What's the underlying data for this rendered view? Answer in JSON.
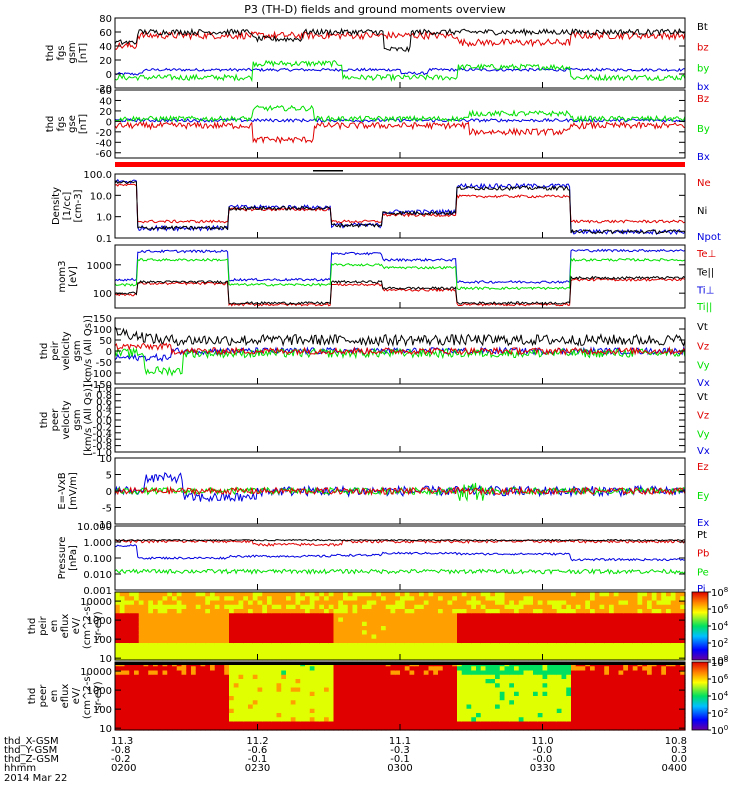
{
  "title": "P3 (TH-D) fields and ground moments overview",
  "colors": {
    "black": "#000000",
    "red": "#e00000",
    "green": "#00e000",
    "blue": "#0000e0",
    "redbar": "#ff0000"
  },
  "panels": [
    {
      "id": "fgs-gsm",
      "ylabel": [
        "thd",
        "fgs",
        "gsm",
        "[nT]"
      ],
      "ylim": [
        -20,
        80
      ],
      "ticks": [
        -20,
        0,
        20,
        40,
        60,
        80
      ],
      "legend": [
        {
          "label": "Bt",
          "color": "black"
        },
        {
          "label": "bz",
          "color": "red"
        },
        {
          "label": "by",
          "color": "green"
        },
        {
          "label": "bx",
          "color": "blue"
        }
      ]
    },
    {
      "id": "fgs-gse",
      "ylabel": [
        "thd",
        "fgs",
        "gse",
        "[nT]"
      ],
      "ylim": [
        -70,
        60
      ],
      "ticks": [
        -60,
        -40,
        -20,
        0,
        20,
        40,
        60
      ],
      "legend": [
        {
          "label": "Bz",
          "color": "red"
        },
        {
          "label": "By",
          "color": "green"
        },
        {
          "label": "Bx",
          "color": "blue"
        }
      ]
    },
    {
      "id": "density",
      "ylabel": [
        "Density",
        "[1/cc]",
        "[cm-3]"
      ],
      "log": true,
      "ylim": [
        0.1,
        100
      ],
      "ticks": [
        "0.1",
        "1.0",
        "10.0",
        "100.0"
      ],
      "legend": [
        {
          "label": "Ne",
          "color": "red"
        },
        {
          "label": "Ni",
          "color": "black"
        },
        {
          "label": "Npot",
          "color": "blue"
        }
      ]
    },
    {
      "id": "temperature",
      "ylabel": [
        "mom3",
        "[eV]"
      ],
      "log": true,
      "ylim": [
        30,
        5000
      ],
      "ticks": [
        "100",
        "1000"
      ],
      "legend": [
        {
          "label": "Te⊥",
          "color": "red"
        },
        {
          "label": "Te||",
          "color": "black"
        },
        {
          "label": "Ti⊥",
          "color": "blue"
        },
        {
          "label": "Ti||",
          "color": "green"
        }
      ]
    },
    {
      "id": "peir-velocity",
      "ylabel": [
        "thd",
        "peir",
        "velocity",
        "gsm",
        "[km/s (All Qs)]"
      ],
      "ylim": [
        -150,
        150
      ],
      "ticks": [
        -150,
        -100,
        -50,
        0,
        50,
        100,
        150
      ],
      "legend": [
        {
          "label": "Vt",
          "color": "black"
        },
        {
          "label": "Vz",
          "color": "red"
        },
        {
          "label": "Vy",
          "color": "green"
        },
        {
          "label": "Vx",
          "color": "blue"
        }
      ]
    },
    {
      "id": "peer-velocity",
      "ylabel": [
        "thd",
        "peer",
        "velocity",
        "gsm",
        "[km/s (All Qs)]"
      ],
      "ylim": [
        -1,
        1
      ],
      "ticks": [
        "-1.0",
        "-0.8",
        "-0.6",
        "-0.4",
        "-0.2",
        "0.0",
        "0.2",
        "0.4",
        "0.6",
        "0.8",
        "1.0"
      ],
      "legend": [
        {
          "label": "Vt",
          "color": "black"
        },
        {
          "label": "Vz",
          "color": "red"
        },
        {
          "label": "Vy",
          "color": "green"
        },
        {
          "label": "Vx",
          "color": "blue"
        }
      ]
    },
    {
      "id": "efield",
      "ylabel": [
        "E=-VxB",
        "[mV/m]"
      ],
      "ylim": [
        -10,
        10
      ],
      "ticks": [
        -10,
        -5,
        0,
        5,
        10
      ],
      "legend": [
        {
          "label": "Ez",
          "color": "red"
        },
        {
          "label": "Ey",
          "color": "green"
        },
        {
          "label": "Ex",
          "color": "blue"
        }
      ]
    },
    {
      "id": "pressure",
      "ylabel": [
        "Pressure",
        "[nPa]"
      ],
      "log": true,
      "ylim": [
        0.001,
        10
      ],
      "ticks": [
        "0.001",
        "0.010",
        "0.100",
        "1.000",
        "10.000"
      ],
      "legend": [
        {
          "label": "Pt",
          "color": "black"
        },
        {
          "label": "Pb",
          "color": "red"
        },
        {
          "label": "Pe",
          "color": "green"
        },
        {
          "label": "Pi",
          "color": "blue"
        }
      ]
    },
    {
      "id": "peir-eflux",
      "ylabel": [
        "thd",
        "peir",
        "en",
        "eflux",
        "eV/",
        "(cm^2-s-",
        "sr-eV)"
      ],
      "log": true,
      "ylim": [
        8,
        30000
      ],
      "ticks": [
        "10",
        "100",
        "1000",
        "10000"
      ],
      "colorbar": [
        "10^0",
        "10^2",
        "10^4",
        "10^6",
        "10^8"
      ]
    },
    {
      "id": "peer-eflux",
      "ylabel": [
        "thd",
        "peer",
        "en",
        "eflux",
        "eV/",
        "(cm^2-s-",
        "sr-eV)"
      ],
      "log": true,
      "ylim": [
        8,
        30000
      ],
      "ticks": [
        "10",
        "100",
        "1000",
        "10000"
      ],
      "colorbar": [
        "10^0",
        "10^2",
        "10^4",
        "10^6",
        "10^8"
      ]
    }
  ],
  "xaxis": {
    "row_labels": [
      "thd_X-GSM",
      "thd_Y-GSM",
      "thd_Z-GSM",
      "hhmm",
      "2014 Mar 22"
    ],
    "ticks": [
      {
        "x": "11.3",
        "y": "-0.8",
        "z": "-0.2",
        "t": "0200"
      },
      {
        "x": "11.2",
        "y": "-0.6",
        "z": "-0.1",
        "t": "0230"
      },
      {
        "x": "11.1",
        "y": "-0.3",
        "z": "-0.1",
        "t": "0300"
      },
      {
        "x": "11.0",
        "y": "-0.0",
        "z": "-0.0",
        "t": "0330"
      },
      {
        "x": "10.8",
        "y": "0.3",
        "z": "0.0",
        "t": "0400"
      }
    ]
  },
  "chart_data": {
    "type": "line",
    "title": "P3 (TH-D) fields and ground moments overview",
    "x_range": [
      "0200",
      "0400"
    ],
    "x_units": "hhmm, 2014 Mar 22",
    "series_sketch": {
      "Bt": {
        "times": [
          "0200",
          "0230",
          "0300",
          "0330",
          "0400"
        ],
        "values": [
          60,
          58,
          55,
          60,
          62
        ]
      },
      "Density_Ni": {
        "times": [
          "0200",
          "0215",
          "0230",
          "0245",
          "0300",
          "0315",
          "0330",
          "0345",
          "0400"
        ],
        "values": [
          30,
          0.3,
          2.5,
          2.5,
          0.5,
          20,
          20,
          0.2,
          0.2
        ]
      },
      "Pressure_Pt": {
        "times": [
          "0200",
          "0230",
          "0300",
          "0330",
          "0400"
        ],
        "values": [
          1.2,
          1.2,
          1.0,
          1.2,
          1.5
        ]
      }
    }
  }
}
